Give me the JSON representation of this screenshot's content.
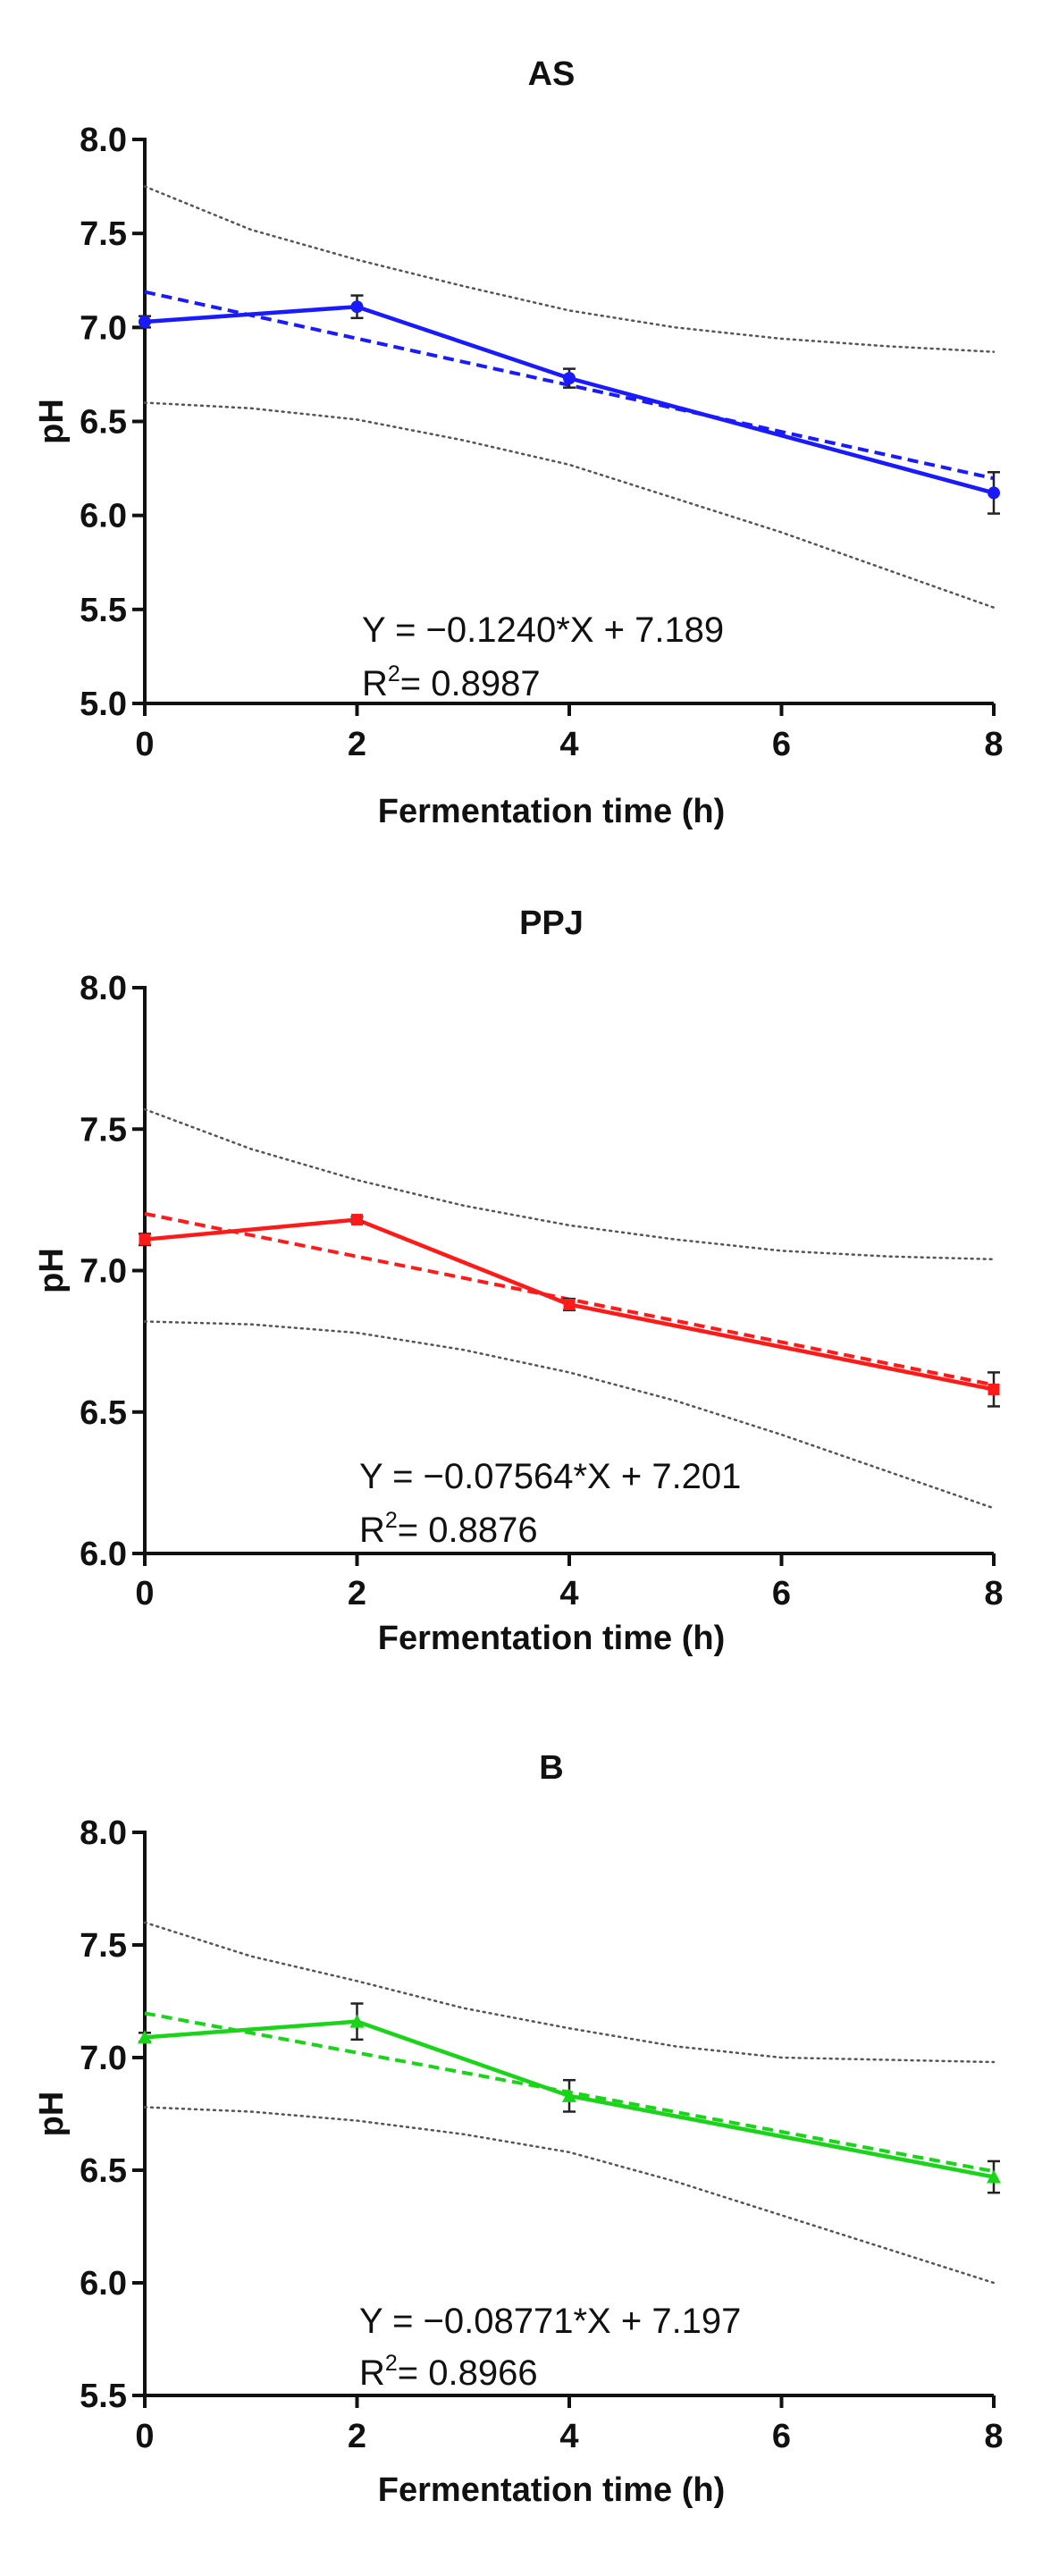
{
  "chart_data": [
    {
      "type": "line",
      "title": "AS",
      "xlabel": "Fermentation time (h)",
      "ylabel": "pH",
      "xlim": [
        0,
        8
      ],
      "ylim": [
        5.0,
        8.0
      ],
      "x_ticks": [
        "0",
        "2",
        "4",
        "6",
        "8"
      ],
      "y_ticks": [
        "5.0",
        "5.5",
        "6.0",
        "6.5",
        "7.0",
        "7.5",
        "8.0"
      ],
      "color": "#1a1aff",
      "marker": "circle",
      "series": [
        {
          "name": "pH",
          "x": [
            0,
            2,
            4,
            8
          ],
          "y": [
            7.03,
            7.11,
            6.73,
            6.12
          ],
          "err": [
            0.03,
            0.06,
            0.05,
            0.11
          ]
        }
      ],
      "fit": {
        "slope": -0.124,
        "intercept": 7.189
      },
      "ci_upper": [
        7.75,
        7.52,
        7.36,
        7.22,
        7.09,
        7.0,
        6.94,
        6.9,
        6.87
      ],
      "ci_lower": [
        6.6,
        6.57,
        6.51,
        6.4,
        6.27,
        6.09,
        5.91,
        5.71,
        5.51
      ],
      "equation_text": "Y = −0.1240*X + 7.189",
      "r2_prefix": "R",
      "r2_superscript": "2",
      "r2_value": "= 0.8987"
    },
    {
      "type": "line",
      "title": "PPJ",
      "xlabel": "Fermentation time (h)",
      "ylabel": "pH",
      "xlim": [
        0,
        8
      ],
      "ylim": [
        6.0,
        8.0
      ],
      "x_ticks": [
        "0",
        "2",
        "4",
        "6",
        "8"
      ],
      "y_ticks": [
        "6.0",
        "6.5",
        "7.0",
        "7.5",
        "8.0"
      ],
      "color": "#ff1a1a",
      "marker": "square",
      "series": [
        {
          "name": "pH",
          "x": [
            0,
            2,
            4,
            8
          ],
          "y": [
            7.11,
            7.18,
            6.88,
            6.58
          ],
          "err": [
            0.02,
            0.01,
            0.02,
            0.06
          ]
        }
      ],
      "fit": {
        "slope": -0.07564,
        "intercept": 7.201
      },
      "ci_upper": [
        7.57,
        7.43,
        7.32,
        7.23,
        7.16,
        7.11,
        7.07,
        7.05,
        7.04
      ],
      "ci_lower": [
        6.82,
        6.81,
        6.78,
        6.72,
        6.64,
        6.54,
        6.42,
        6.29,
        6.16
      ],
      "equation_text": "Y = −0.07564*X + 7.201",
      "r2_prefix": "R",
      "r2_superscript": "2",
      "r2_value": "= 0.8876"
    },
    {
      "type": "line",
      "title": "B",
      "xlabel": "Fermentation time (h)",
      "ylabel": "pH",
      "xlim": [
        0,
        8
      ],
      "ylim": [
        5.5,
        8.0
      ],
      "x_ticks": [
        "0",
        "2",
        "4",
        "6",
        "8"
      ],
      "y_ticks": [
        "5.5",
        "6.0",
        "6.5",
        "7.0",
        "7.5",
        "8.0"
      ],
      "color": "#1ad41a",
      "marker": "triangle",
      "series": [
        {
          "name": "pH",
          "x": [
            0,
            2,
            4,
            8
          ],
          "y": [
            7.09,
            7.16,
            6.83,
            6.47
          ],
          "err": [
            0.02,
            0.08,
            0.07,
            0.07
          ]
        }
      ],
      "fit": {
        "slope": -0.08771,
        "intercept": 7.197
      },
      "ci_upper": [
        7.6,
        7.45,
        7.34,
        7.22,
        7.13,
        7.05,
        7.0,
        6.99,
        6.98
      ],
      "ci_lower": [
        6.78,
        6.76,
        6.72,
        6.66,
        6.58,
        6.45,
        6.3,
        6.15,
        6.0
      ],
      "equation_text": "Y = −0.08771*X + 7.197",
      "r2_prefix": "R",
      "r2_superscript": "2",
      "r2_value": "= 0.8966"
    }
  ]
}
